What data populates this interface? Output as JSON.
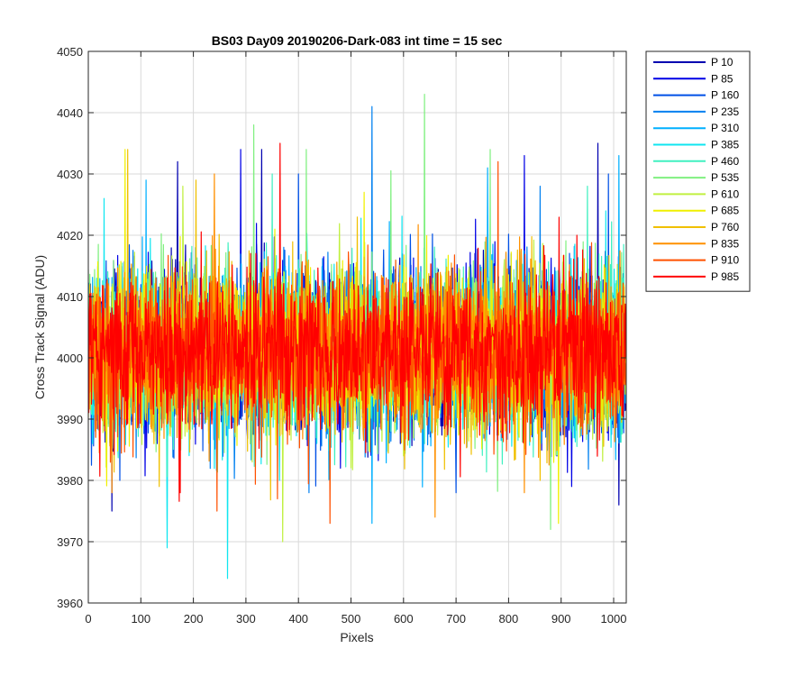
{
  "chart_data": {
    "type": "line",
    "title": "BS03 Day09 20190206-Dark-083 int time = 15 sec",
    "xlabel": "Pixels",
    "ylabel": "Cross Track Signal (ADU)",
    "xlim": [
      0,
      1024
    ],
    "ylim": [
      3960,
      4050
    ],
    "xticks": [
      0,
      100,
      200,
      300,
      400,
      500,
      600,
      700,
      800,
      900,
      1000
    ],
    "yticks": [
      3960,
      3970,
      3980,
      3990,
      4000,
      4010,
      4020,
      4030,
      4040,
      4050
    ],
    "grid": true,
    "legend_position": "outside-top-right",
    "noise_profile": {
      "mean": 4001,
      "std": 6.5,
      "points_per_series": 1024
    },
    "series": [
      {
        "name": "P 10",
        "color": "#0000b0",
        "spikes": [
          [
            45,
            3975
          ],
          [
            170,
            4032
          ],
          [
            330,
            4034
          ],
          [
            970,
            4035
          ],
          [
            1010,
            3976
          ]
        ]
      },
      {
        "name": "P 85",
        "color": "#0000e6",
        "spikes": [
          [
            290,
            4034
          ],
          [
            480,
            3982
          ],
          [
            830,
            4033
          ],
          [
            920,
            3979
          ]
        ]
      },
      {
        "name": "P 160",
        "color": "#0050e6",
        "spikes": [
          [
            60,
            3980
          ],
          [
            400,
            4030
          ],
          [
            700,
            3978
          ],
          [
            990,
            4030
          ]
        ]
      },
      {
        "name": "P 235",
        "color": "#0080f0",
        "spikes": [
          [
            540,
            4041
          ],
          [
            420,
            3978
          ],
          [
            860,
            4028
          ]
        ]
      },
      {
        "name": "P 310",
        "color": "#00b0ff",
        "spikes": [
          [
            110,
            4029
          ],
          [
            540,
            3973
          ],
          [
            760,
            4031
          ],
          [
            1010,
            4033
          ]
        ]
      },
      {
        "name": "P 385",
        "color": "#10e6f0",
        "spikes": [
          [
            150,
            3969
          ],
          [
            265,
            3964
          ],
          [
            30,
            4026
          ]
        ]
      },
      {
        "name": "P 460",
        "color": "#40f0c0",
        "spikes": [
          [
            350,
            4030
          ],
          [
            640,
            3986
          ],
          [
            950,
            4028
          ]
        ]
      },
      {
        "name": "P 535",
        "color": "#80f080",
        "spikes": [
          [
            315,
            4038
          ],
          [
            415,
            4034
          ],
          [
            640,
            4043
          ],
          [
            765,
            4034
          ],
          [
            880,
            3972
          ]
        ]
      },
      {
        "name": "P 610",
        "color": "#c0f040",
        "spikes": [
          [
            370,
            3970
          ],
          [
            180,
            4028
          ],
          [
            600,
            3984
          ]
        ]
      },
      {
        "name": "P 685",
        "color": "#f0f000",
        "spikes": [
          [
            70,
            4034
          ],
          [
            525,
            4027
          ],
          [
            895,
            3973
          ]
        ]
      },
      {
        "name": "P 760",
        "color": "#f0c000",
        "spikes": [
          [
            75,
            4034
          ],
          [
            135,
            3979
          ],
          [
            205,
            4029
          ],
          [
            860,
            3980
          ]
        ]
      },
      {
        "name": "P 835",
        "color": "#ff9000",
        "spikes": [
          [
            45,
            3978
          ],
          [
            240,
            4030
          ],
          [
            660,
            3974
          ],
          [
            830,
            3978
          ]
        ]
      },
      {
        "name": "P 910",
        "color": "#ff5000",
        "spikes": [
          [
            245,
            3975
          ],
          [
            360,
            3977
          ],
          [
            460,
            3973
          ],
          [
            780,
            4032
          ]
        ]
      },
      {
        "name": "P 985",
        "color": "#ff0000",
        "spikes": [
          [
            365,
            4035
          ],
          [
            175,
            3978
          ],
          [
            930,
            4020
          ]
        ]
      }
    ]
  }
}
